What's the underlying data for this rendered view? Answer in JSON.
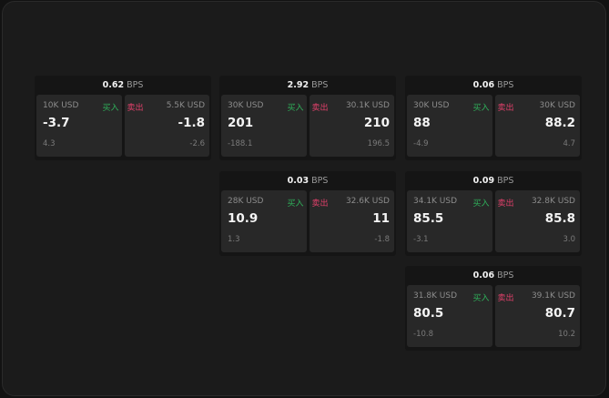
{
  "unit": "BPS",
  "buy_label": "买入",
  "sell_label": "卖出",
  "panels": [
    {
      "bps": "0.62",
      "buy": {
        "size": "10K USD",
        "price": "-3.7",
        "change": "4.3"
      },
      "sell": {
        "size": "5.5K USD",
        "price": "-1.8",
        "change": "-2.6"
      }
    },
    {
      "bps": "2.92",
      "buy": {
        "size": "30K USD",
        "price": "201",
        "change": "-188.1"
      },
      "sell": {
        "size": "30.1K USD",
        "price": "210",
        "change": "196.5"
      }
    },
    {
      "bps": "0.06",
      "buy": {
        "size": "30K USD",
        "price": "88",
        "change": "-4.9"
      },
      "sell": {
        "size": "30K USD",
        "price": "88.2",
        "change": "4.7"
      }
    },
    {
      "bps": "0.03",
      "buy": {
        "size": "28K USD",
        "price": "10.9",
        "change": "1.3"
      },
      "sell": {
        "size": "32.6K USD",
        "price": "11",
        "change": "-1.8"
      }
    },
    {
      "bps": "0.09",
      "buy": {
        "size": "34.1K USD",
        "price": "85.5",
        "change": "-3.1"
      },
      "sell": {
        "size": "32.8K USD",
        "price": "85.8",
        "change": "3.0"
      }
    },
    {
      "bps": "0.06",
      "buy": {
        "size": "31.8K USD",
        "price": "80.5",
        "change": "-10.8"
      },
      "sell": {
        "size": "39.1K USD",
        "price": "80.7",
        "change": "10.2"
      }
    }
  ]
}
